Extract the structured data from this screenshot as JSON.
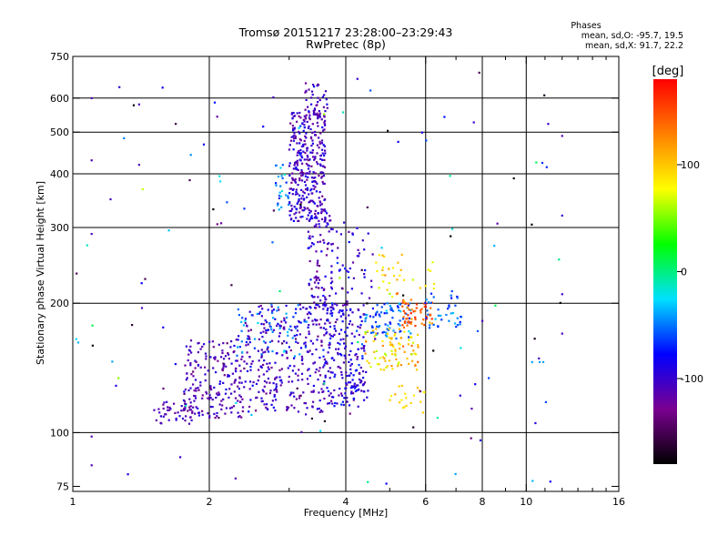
{
  "chart_data": {
    "type": "scatter",
    "title": "Tromsø 20151217 23:28:00–23:29:43",
    "subtitle": "RwPretec (8p)",
    "xlabel": "Frequency [MHz]",
    "ylabel": "Stationary phase Virtual Height [km]",
    "x_scale": "log",
    "y_scale": "log",
    "xlim": [
      1,
      16
    ],
    "ylim": [
      73,
      750
    ],
    "x_ticks": [
      1,
      2,
      4,
      6,
      8,
      10,
      16
    ],
    "x_tick_labels": [
      "1",
      "2",
      "4",
      "6",
      "8",
      "10",
      "16"
    ],
    "x_grid": [
      1,
      2,
      4,
      6,
      8,
      10,
      16
    ],
    "x_minor_ticks": [
      3,
      5,
      7,
      9,
      11,
      12,
      13,
      14,
      15
    ],
    "y_ticks": [
      75,
      100,
      200,
      300,
      400,
      500,
      600,
      750
    ],
    "y_tick_labels": [
      "75",
      "100",
      "200",
      "300",
      "400",
      "500",
      "600",
      "750"
    ],
    "y_grid": [
      100,
      200,
      300,
      400,
      500,
      600
    ],
    "grid": true,
    "stats": {
      "header": "Phases",
      "line_o": "mean, sd,O: -95.7, 19.5",
      "line_x": "mean, sd,X:  91.7, 22.2"
    },
    "colorbar": {
      "label": "[deg]",
      "range": [
        -180,
        180
      ],
      "ticks": [
        100,
        0,
        -100
      ],
      "tick_labels": [
        "100",
        "0",
        "-100"
      ],
      "colormap": [
        "#000000",
        "#7a0090",
        "#0000ff",
        "#00e0ff",
        "#00ff00",
        "#ffff00",
        "#ff8000",
        "#ff0000"
      ]
    },
    "clusters": [
      {
        "fmin": 3.0,
        "fmax": 3.6,
        "hmin": 310,
        "hmax": 560,
        "n": 330,
        "phase": -105,
        "spread": 14
      },
      {
        "fmin": 3.25,
        "fmax": 3.65,
        "hmin": 540,
        "hmax": 650,
        "n": 40,
        "phase": -110,
        "spread": 12
      },
      {
        "fmin": 2.8,
        "fmax": 3.0,
        "hmin": 330,
        "hmax": 420,
        "n": 25,
        "phase": -45,
        "spread": 20
      },
      {
        "fmin": 3.3,
        "fmax": 3.75,
        "hmin": 190,
        "hmax": 330,
        "n": 110,
        "phase": -105,
        "spread": 14
      },
      {
        "fmin": 3.8,
        "fmax": 4.6,
        "hmin": 180,
        "hmax": 300,
        "n": 50,
        "phase": -95,
        "spread": 15
      },
      {
        "fmin": 1.5,
        "fmax": 1.85,
        "hmin": 104,
        "hmax": 118,
        "n": 40,
        "phase": -110,
        "spread": 10
      },
      {
        "fmin": 1.75,
        "fmax": 2.4,
        "hmin": 108,
        "hmax": 165,
        "n": 200,
        "phase": -112,
        "spread": 12
      },
      {
        "fmin": 2.4,
        "fmax": 3.6,
        "hmin": 110,
        "hmax": 200,
        "n": 300,
        "phase": -105,
        "spread": 15
      },
      {
        "fmin": 3.6,
        "fmax": 4.4,
        "hmin": 115,
        "hmax": 200,
        "n": 180,
        "phase": -95,
        "spread": 15
      },
      {
        "fmin": 4.4,
        "fmax": 5.6,
        "hmin": 165,
        "hmax": 200,
        "n": 80,
        "phase": -60,
        "spread": 15
      },
      {
        "fmin": 2.3,
        "fmax": 3.3,
        "hmin": 150,
        "hmax": 200,
        "n": 60,
        "phase": -55,
        "spread": 18
      },
      {
        "fmin": 4.4,
        "fmax": 5.8,
        "hmin": 140,
        "hmax": 175,
        "n": 90,
        "phase": 95,
        "spread": 18
      },
      {
        "fmin": 5.3,
        "fmax": 6.2,
        "hmin": 175,
        "hmax": 205,
        "n": 60,
        "phase": 145,
        "spread": 18
      },
      {
        "fmin": 5.0,
        "fmax": 6.0,
        "hmin": 110,
        "hmax": 130,
        "n": 20,
        "phase": 95,
        "spread": 10
      },
      {
        "fmin": 4.6,
        "fmax": 6.3,
        "hmin": 200,
        "hmax": 260,
        "n": 35,
        "phase": 95,
        "spread": 20
      },
      {
        "fmin": 5.9,
        "fmax": 7.2,
        "hmin": 175,
        "hmax": 215,
        "n": 40,
        "phase": -55,
        "spread": 12
      },
      {
        "fmin": 4.0,
        "fmax": 4.5,
        "hmin": 120,
        "hmax": 140,
        "n": 30,
        "phase": -100,
        "spread": 12
      },
      {
        "fmin": 1.0,
        "fmax": 12.0,
        "hmin": 76,
        "hmax": 700,
        "n": 120,
        "phase": -90,
        "spread": 60
      }
    ],
    "isolated_points": [
      {
        "f": 1.1,
        "h": 600,
        "phase": -110
      },
      {
        "f": 1.1,
        "h": 430,
        "phase": -110
      },
      {
        "f": 1.1,
        "h": 290,
        "phase": -110
      },
      {
        "f": 1.1,
        "h": 98,
        "phase": -110
      },
      {
        "f": 1.1,
        "h": 84,
        "phase": -110
      },
      {
        "f": 1.4,
        "h": 580,
        "phase": -110
      },
      {
        "f": 1.4,
        "h": 420,
        "phase": -110
      },
      {
        "f": 1.42,
        "h": 195,
        "phase": -110
      },
      {
        "f": 8.0,
        "h": 182,
        "phase": -110
      },
      {
        "f": 10.3,
        "h": 146,
        "phase": -40
      },
      {
        "f": 10.7,
        "h": 146,
        "phase": -40
      },
      {
        "f": 10.9,
        "h": 146,
        "phase": -40
      },
      {
        "f": 12.0,
        "h": 490,
        "phase": -110
      },
      {
        "f": 12.0,
        "h": 320,
        "phase": -100
      },
      {
        "f": 12.0,
        "h": 210,
        "phase": -100
      },
      {
        "f": 12.0,
        "h": 170,
        "phase": -110
      }
    ]
  }
}
